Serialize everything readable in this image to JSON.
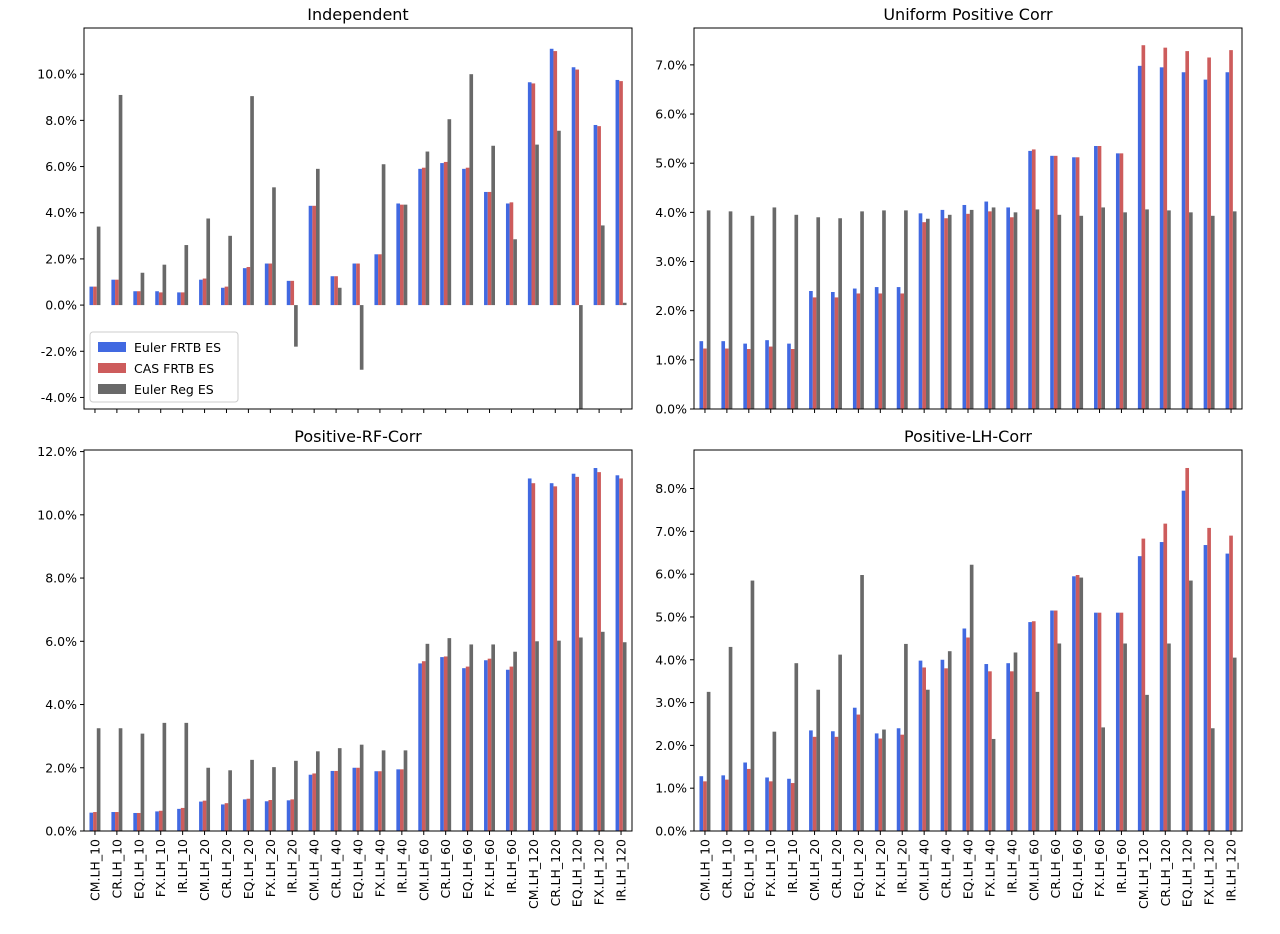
{
  "colors": {
    "euler_frtb": "#4169e1",
    "cas_frtb": "#cd5c5c",
    "euler_reg": "#696969"
  },
  "chart_data": [
    {
      "type": "bar",
      "title": "Independent",
      "categories": [
        "CM.LH_10",
        "CR.LH_10",
        "EQ.LH_10",
        "FX.LH_10",
        "IR.LH_10",
        "CM.LH_20",
        "CR.LH_20",
        "EQ.LH_20",
        "FX.LH_20",
        "IR.LH_20",
        "CM.LH_40",
        "CR.LH_40",
        "EQ.LH_40",
        "FX.LH_40",
        "IR.LH_40",
        "CM.LH_60",
        "CR.LH_60",
        "EQ.LH_60",
        "FX.LH_60",
        "IR.LH_60",
        "CM.LH_120",
        "CR.LH_120",
        "EQ.LH_120",
        "FX.LH_120",
        "IR.LH_120"
      ],
      "show_xticklabels": false,
      "ylim": [
        -4.5,
        12.0
      ],
      "yticks": [
        -4,
        -2,
        0,
        2,
        4,
        6,
        8,
        10
      ],
      "ytick_labels": [
        "-4.0%",
        "-2.0%",
        "0.0%",
        "2.0%",
        "4.0%",
        "6.0%",
        "8.0%",
        "10.0%"
      ],
      "legend": {
        "position": "lower-left",
        "entries": [
          "Euler FRTB ES",
          "CAS FRTB ES",
          "Euler Reg ES"
        ]
      },
      "series": [
        {
          "name": "Euler FRTB ES",
          "values": [
            0.8,
            1.1,
            0.6,
            0.6,
            0.55,
            1.1,
            0.75,
            1.6,
            1.8,
            1.05,
            4.3,
            1.25,
            1.8,
            2.2,
            4.4,
            5.9,
            6.15,
            5.9,
            4.9,
            4.4,
            9.65,
            11.1,
            10.3,
            7.8,
            9.75
          ]
        },
        {
          "name": "CAS FRTB ES",
          "values": [
            0.8,
            1.1,
            0.6,
            0.55,
            0.55,
            1.15,
            0.8,
            1.65,
            1.8,
            1.05,
            4.3,
            1.25,
            1.8,
            2.2,
            4.35,
            5.95,
            6.2,
            5.95,
            4.9,
            4.45,
            9.6,
            11.0,
            10.2,
            7.75,
            9.7
          ]
        },
        {
          "name": "Euler Reg ES",
          "values": [
            3.4,
            9.1,
            1.4,
            1.75,
            2.6,
            3.75,
            3.0,
            9.05,
            5.1,
            -1.8,
            5.9,
            0.75,
            -2.8,
            6.1,
            4.35,
            6.65,
            8.05,
            10.0,
            6.9,
            2.85,
            6.95,
            7.55,
            -4.6,
            3.45,
            0.1
          ]
        }
      ]
    },
    {
      "type": "bar",
      "title": "Uniform Positive Corr",
      "categories": [
        "CM.LH_10",
        "CR.LH_10",
        "EQ.LH_10",
        "FX.LH_10",
        "IR.LH_10",
        "CM.LH_20",
        "CR.LH_20",
        "EQ.LH_20",
        "FX.LH_20",
        "IR.LH_20",
        "CM.LH_40",
        "CR.LH_40",
        "EQ.LH_40",
        "FX.LH_40",
        "IR.LH_40",
        "CM.LH_60",
        "CR.LH_60",
        "EQ.LH_60",
        "FX.LH_60",
        "IR.LH_60",
        "CM.LH_120",
        "CR.LH_120",
        "EQ.LH_120",
        "FX.LH_120",
        "IR.LH_120"
      ],
      "show_xticklabels": false,
      "ylim": [
        0,
        7.75
      ],
      "yticks": [
        0,
        1,
        2,
        3,
        4,
        5,
        6,
        7
      ],
      "ytick_labels": [
        "0.0%",
        "1.0%",
        "2.0%",
        "3.0%",
        "4.0%",
        "5.0%",
        "6.0%",
        "7.0%"
      ],
      "series": [
        {
          "name": "Euler FRTB ES",
          "values": [
            1.38,
            1.38,
            1.33,
            1.4,
            1.33,
            2.4,
            2.38,
            2.45,
            2.48,
            2.48,
            3.98,
            4.05,
            4.15,
            4.22,
            4.1,
            5.25,
            5.15,
            5.12,
            5.35,
            5.2,
            6.98,
            6.95,
            6.85,
            6.7,
            6.85
          ]
        },
        {
          "name": "CAS FRTB ES",
          "values": [
            1.23,
            1.23,
            1.22,
            1.27,
            1.22,
            2.27,
            2.27,
            2.35,
            2.35,
            2.35,
            3.8,
            3.88,
            3.97,
            4.02,
            3.9,
            5.28,
            5.15,
            5.12,
            5.35,
            5.2,
            7.4,
            7.35,
            7.28,
            7.15,
            7.3
          ]
        },
        {
          "name": "Euler Reg ES",
          "values": [
            4.04,
            4.02,
            3.93,
            4.1,
            3.95,
            3.9,
            3.88,
            4.02,
            4.04,
            4.04,
            3.87,
            3.95,
            4.05,
            4.1,
            4.0,
            4.06,
            3.95,
            3.93,
            4.1,
            4.0,
            4.06,
            4.04,
            4.0,
            3.93,
            4.02
          ]
        }
      ]
    },
    {
      "type": "bar",
      "title": "Positive-RF-Corr",
      "categories": [
        "CM.LH_10",
        "CR.LH_10",
        "EQ.LH_10",
        "FX.LH_10",
        "IR.LH_10",
        "CM.LH_20",
        "CR.LH_20",
        "EQ.LH_20",
        "FX.LH_20",
        "IR.LH_20",
        "CM.LH_40",
        "CR.LH_40",
        "EQ.LH_40",
        "FX.LH_40",
        "IR.LH_40",
        "CM.LH_60",
        "CR.LH_60",
        "EQ.LH_60",
        "FX.LH_60",
        "IR.LH_60",
        "CM.LH_120",
        "CR.LH_120",
        "EQ.LH_120",
        "FX.LH_120",
        "IR.LH_120"
      ],
      "show_xticklabels": true,
      "ylim": [
        0,
        12.05
      ],
      "yticks": [
        0,
        2,
        4,
        6,
        8,
        10,
        12
      ],
      "ytick_labels": [
        "0.0%",
        "2.0%",
        "4.0%",
        "6.0%",
        "8.0%",
        "10.0%",
        "12.0%"
      ],
      "series": [
        {
          "name": "Euler FRTB ES",
          "values": [
            0.58,
            0.6,
            0.57,
            0.62,
            0.7,
            0.93,
            0.84,
            1.0,
            0.94,
            0.97,
            1.78,
            1.9,
            2.0,
            1.89,
            1.95,
            5.3,
            5.5,
            5.15,
            5.4,
            5.1,
            11.15,
            11.0,
            11.3,
            11.48,
            11.25
          ]
        },
        {
          "name": "CAS FRTB ES",
          "values": [
            0.6,
            0.6,
            0.57,
            0.64,
            0.73,
            0.96,
            0.88,
            1.02,
            0.98,
            1.0,
            1.82,
            1.9,
            2.0,
            1.89,
            1.95,
            5.37,
            5.52,
            5.2,
            5.45,
            5.2,
            11.0,
            10.9,
            11.2,
            11.35,
            11.15
          ]
        },
        {
          "name": "Euler Reg ES",
          "values": [
            3.25,
            3.25,
            3.08,
            3.42,
            3.42,
            2.0,
            1.92,
            2.25,
            2.02,
            2.22,
            2.52,
            2.62,
            2.73,
            2.55,
            2.55,
            5.92,
            6.1,
            5.9,
            5.9,
            5.67,
            6.0,
            6.02,
            6.12,
            6.3,
            5.97
          ]
        }
      ]
    },
    {
      "type": "bar",
      "title": "Positive-LH-Corr",
      "categories": [
        "CM.LH_10",
        "CR.LH_10",
        "EQ.LH_10",
        "FX.LH_10",
        "IR.LH_10",
        "CM.LH_20",
        "CR.LH_20",
        "EQ.LH_20",
        "FX.LH_20",
        "IR.LH_20",
        "CM.LH_40",
        "CR.LH_40",
        "EQ.LH_40",
        "FX.LH_40",
        "IR.LH_40",
        "CM.LH_60",
        "CR.LH_60",
        "EQ.LH_60",
        "FX.LH_60",
        "IR.LH_60",
        "CM.LH_120",
        "CR.LH_120",
        "EQ.LH_120",
        "FX.LH_120",
        "IR.LH_120"
      ],
      "show_xticklabels": true,
      "ylim": [
        0,
        8.9
      ],
      "yticks": [
        0,
        1,
        2,
        3,
        4,
        5,
        6,
        7,
        8
      ],
      "ytick_labels": [
        "0.0%",
        "1.0%",
        "2.0%",
        "3.0%",
        "4.0%",
        "5.0%",
        "6.0%",
        "7.0%",
        "8.0%"
      ],
      "series": [
        {
          "name": "Euler FRTB ES",
          "values": [
            1.28,
            1.3,
            1.6,
            1.25,
            1.22,
            2.35,
            2.33,
            2.88,
            2.28,
            2.4,
            3.98,
            4.0,
            4.73,
            3.9,
            3.92,
            4.88,
            5.15,
            5.95,
            5.1,
            5.1,
            6.42,
            6.75,
            7.95,
            6.68,
            6.48
          ]
        },
        {
          "name": "CAS FRTB ES",
          "values": [
            1.16,
            1.2,
            1.45,
            1.16,
            1.12,
            2.2,
            2.2,
            2.72,
            2.16,
            2.25,
            3.82,
            3.8,
            4.52,
            3.73,
            3.73,
            4.9,
            5.15,
            5.98,
            5.1,
            5.1,
            6.83,
            7.18,
            8.48,
            7.08,
            6.9
          ]
        },
        {
          "name": "Euler Reg ES",
          "values": [
            3.25,
            4.3,
            5.85,
            2.32,
            3.92,
            3.3,
            4.12,
            5.98,
            2.37,
            4.37,
            3.3,
            4.2,
            6.22,
            2.15,
            4.17,
            3.25,
            4.38,
            5.92,
            2.42,
            4.38,
            3.18,
            4.38,
            5.85,
            2.4,
            4.05
          ]
        }
      ]
    }
  ]
}
